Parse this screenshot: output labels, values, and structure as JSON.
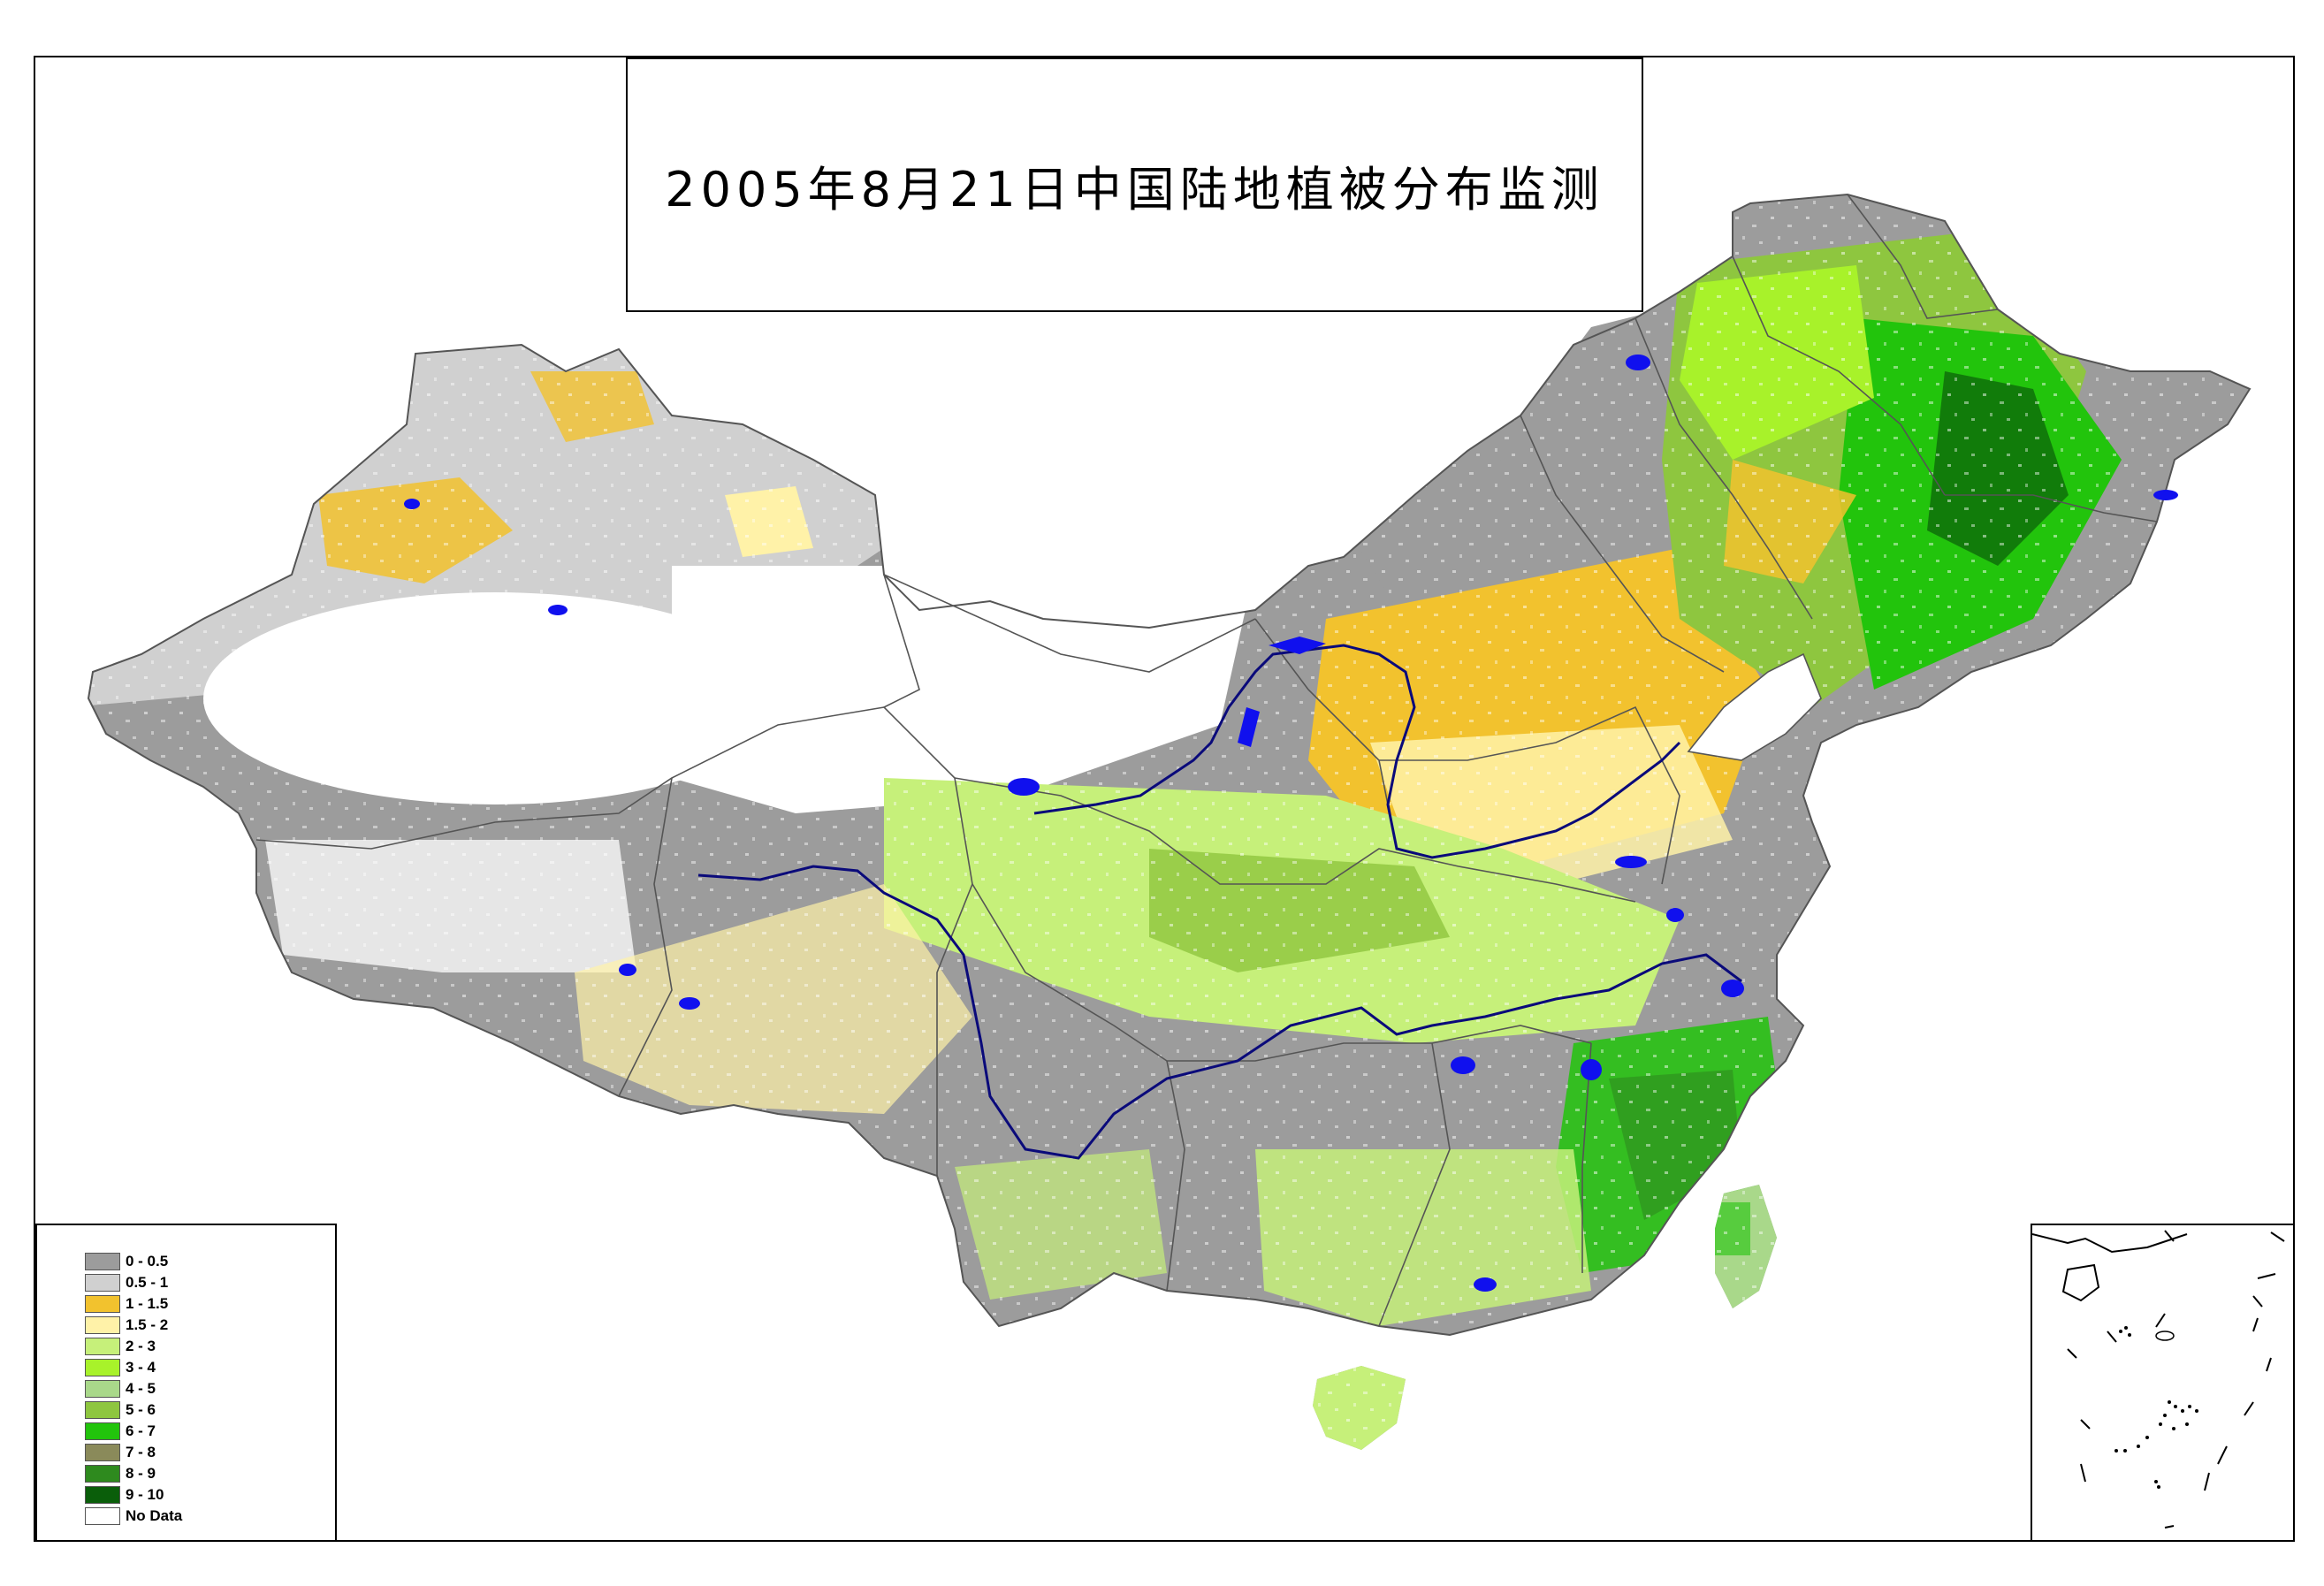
{
  "title": "2005年8月21日中国陆地植被分布监测",
  "legend": [
    {
      "label": "0 - 0.5",
      "color": "#9c9c9c"
    },
    {
      "label": "0.5 - 1",
      "color": "#d0d0d0"
    },
    {
      "label": "1 - 1.5",
      "color": "#f2c22e"
    },
    {
      "label": "1.5 - 2",
      "color": "#fff2a8"
    },
    {
      "label": "2 - 3",
      "color": "#c6f07a"
    },
    {
      "label": "3 - 4",
      "color": "#a8f22a"
    },
    {
      "label": "4 - 5",
      "color": "#a9d88a"
    },
    {
      "label": "5 - 6",
      "color": "#8ec63f"
    },
    {
      "label": "6 - 7",
      "color": "#22c40c"
    },
    {
      "label": "7 - 8",
      "color": "#8a8a5a"
    },
    {
      "label": "8 - 9",
      "color": "#2e8a1e"
    },
    {
      "label": "9 - 10",
      "color": "#0a5e0a"
    },
    {
      "label": "No Data",
      "color": "#ffffff"
    }
  ],
  "colors": {
    "water": "#1010ee",
    "river": "#0a0a7a",
    "boundary": "#555555"
  }
}
